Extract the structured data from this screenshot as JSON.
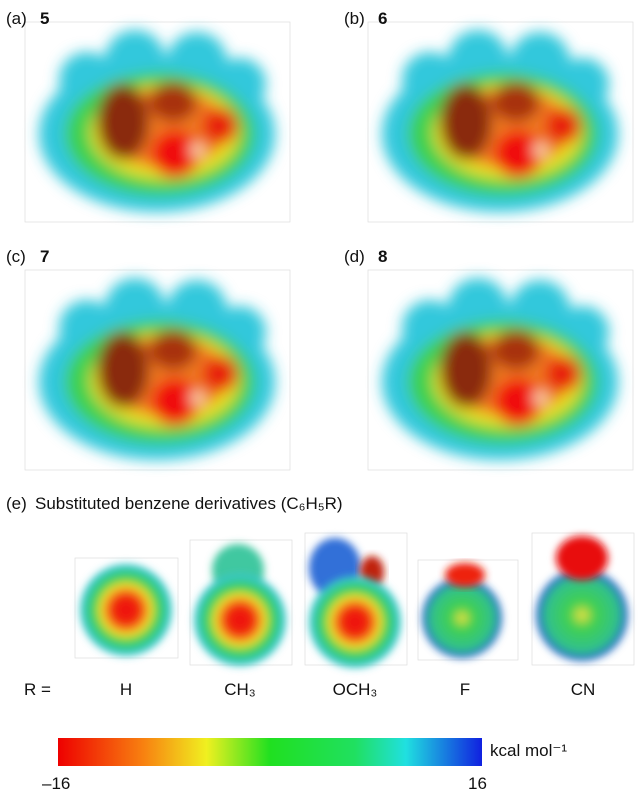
{
  "panels": [
    {
      "label": "(a)",
      "compound": "5"
    },
    {
      "label": "(b)",
      "compound": "6"
    },
    {
      "label": "(c)",
      "compound": "7"
    },
    {
      "label": "(d)",
      "compound": "8"
    }
  ],
  "section_e": {
    "label": "(e)",
    "title": "Substituted benzene derivatives (C₆H₅R)",
    "r_label": "R =",
    "substituents": [
      "H",
      "CH₃",
      "OCH₃",
      "F",
      "CN"
    ]
  },
  "colorbar": {
    "min_label": "–16",
    "max_label": "16",
    "unit": "kcal mol⁻¹"
  }
}
